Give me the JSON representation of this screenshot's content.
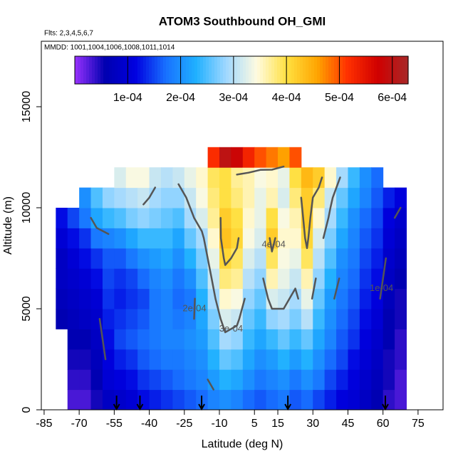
{
  "chart_data": {
    "type": "heatmap",
    "title": "ATOM3 Southbound OH_GMI",
    "subtitle": "Flts: 2,3,4,5,6,7",
    "annotation": "MMDD: 1001,1004,1006,1008,1011,1014",
    "x_label": "Latitude (deg N)",
    "y_label": "Altitude (m)",
    "xlim": [
      -86.2,
      85.7
    ],
    "ylim": [
      0,
      18240
    ],
    "xticks": [
      -85,
      -70,
      -55,
      -40,
      -25,
      -10,
      5,
      15,
      30,
      45,
      60,
      75
    ],
    "yticks": [
      0,
      5000,
      10000,
      15000
    ],
    "zlim": [
      0,
      0.00063
    ],
    "zticks": [
      {
        "value": 0.0001,
        "label": "1e-04"
      },
      {
        "value": 0.0002,
        "label": "2e-04"
      },
      {
        "value": 0.0003,
        "label": "3e-04"
      },
      {
        "value": 0.0004,
        "label": "4e-04"
      },
      {
        "value": 0.0005,
        "label": "5e-04"
      },
      {
        "value": 0.0006,
        "label": "6e-04"
      }
    ],
    "colors": [
      "#9932ff",
      "#0000b0",
      "#0000e0",
      "#1870ff",
      "#20b0ff",
      "#a0d8ff",
      "#fffbe0",
      "#ffe040",
      "#ffa500",
      "#ff3000",
      "#d00000",
      "#a82828"
    ],
    "contour_color": "#555555",
    "contour_levels": [
      {
        "value": 0.0001,
        "label": "1e-04"
      },
      {
        "value": 0.0002,
        "label": "2e-04"
      },
      {
        "value": 0.0003,
        "label": "3e-04"
      },
      {
        "value": 0.0004,
        "label": "4e-04"
      }
    ],
    "flight_markers_x": [
      -54,
      -44,
      -17.6,
      19.3,
      61
    ],
    "x_bins": [
      -80,
      -75,
      -70,
      -65,
      -60,
      -55,
      -50,
      -45,
      -40,
      -35,
      -30,
      -25,
      -20,
      -15,
      -10,
      -5,
      0,
      5,
      10,
      15,
      20,
      25,
      30,
      35,
      40,
      45,
      50,
      55,
      60,
      65,
      70
    ],
    "y_bins": [
      0,
      1000,
      2000,
      3000,
      4000,
      5000,
      6000,
      7000,
      8000,
      9000,
      10000,
      11000,
      12000,
      13000
    ],
    "z": [
      [
        null,
        null,
        null,
        null,
        6e-05,
        7e-05,
        8e-05,
        8e-05,
        0.0001,
        0.00012,
        null,
        null,
        null
      ],
      [
        3e-05,
        4e-05,
        5e-05,
        6e-05,
        7e-05,
        8e-05,
        9e-05,
        0.0001,
        0.00012,
        0.00015,
        null,
        null,
        null
      ],
      [
        3e-05,
        4e-05,
        5e-05,
        6e-05,
        8e-05,
        9e-05,
        0.0001,
        0.00012,
        0.00014,
        0.00018,
        0.0002,
        null,
        null
      ],
      [
        5e-05,
        6e-05,
        7e-05,
        8e-05,
        9e-05,
        0.0001,
        0.00012,
        0.00014,
        0.00018,
        0.00022,
        0.00025,
        null,
        null
      ],
      [
        8e-05,
        0.0001,
        0.00011,
        0.00012,
        0.00013,
        0.00014,
        0.00015,
        0.00016,
        0.00019,
        0.00024,
        0.00028,
        null,
        null
      ],
      [
        9e-05,
        0.00011,
        0.00013,
        0.00015,
        0.00014,
        0.00013,
        0.00014,
        0.00016,
        0.0002,
        0.00025,
        0.00029,
        0.00032,
        null
      ],
      [
        0.0001,
        0.00012,
        0.00014,
        0.00016,
        0.00015,
        0.00014,
        0.00015,
        0.00018,
        0.00022,
        0.00027,
        0.0003,
        0.00034,
        null
      ],
      [
        0.00012,
        0.00014,
        0.00016,
        0.00017,
        0.00016,
        0.00015,
        0.00017,
        0.0002,
        0.00024,
        0.00028,
        0.00031,
        0.00034,
        null
      ],
      [
        0.00013,
        0.00015,
        0.00017,
        0.00018,
        0.00018,
        0.00018,
        0.00019,
        0.00021,
        0.00024,
        0.00027,
        0.00029,
        0.00031,
        null
      ],
      [
        0.00014,
        0.00016,
        0.00018,
        0.00019,
        0.00019,
        0.00019,
        0.0002,
        0.00022,
        0.00024,
        0.00026,
        0.00028,
        0.0003,
        null
      ],
      [
        0.00015,
        0.00017,
        0.00018,
        0.00019,
        0.00018,
        0.00017,
        0.00018,
        0.0002,
        0.00022,
        0.00025,
        0.00028,
        0.00031,
        null
      ],
      [
        0.00016,
        0.00018,
        0.00019,
        0.0002,
        0.00019,
        0.00018,
        0.0002,
        0.00023,
        0.00026,
        0.00029,
        0.00031,
        0.00033,
        null
      ],
      [
        0.00017,
        0.00019,
        0.0002,
        0.00021,
        0.00022,
        0.00023,
        0.00025,
        0.00027,
        0.00029,
        0.00032,
        0.00034,
        0.00035,
        null
      ],
      [
        0.00019,
        0.00021,
        0.00023,
        0.00025,
        0.00027,
        0.00029,
        0.00031,
        0.00033,
        0.00035,
        0.00037,
        0.00038,
        0.00039,
        0.00052
      ],
      [
        0.0002,
        0.00023,
        0.00026,
        0.00029,
        0.00032,
        0.00035,
        0.00038,
        0.00041,
        0.00043,
        0.00042,
        0.0004,
        0.0004,
        0.0006
      ],
      [
        0.00019,
        0.00022,
        0.00025,
        0.00028,
        0.00031,
        0.00034,
        0.00037,
        0.00039,
        0.00041,
        0.0004,
        0.00038,
        0.00037,
        0.00058
      ],
      [
        0.00017,
        0.0002,
        0.00022,
        0.00024,
        0.00026,
        0.00028,
        0.0003,
        0.00032,
        0.00034,
        0.00035,
        0.00036,
        0.00036,
        0.00053
      ],
      [
        0.00016,
        0.00018,
        0.0002,
        0.00022,
        0.00024,
        0.00026,
        0.00028,
        0.0003,
        0.00032,
        0.00033,
        0.00033,
        0.00034,
        0.0005
      ],
      [
        0.00017,
        0.00019,
        0.00021,
        0.00024,
        0.00028,
        0.00032,
        0.00036,
        0.00039,
        0.00042,
        0.0004,
        0.00036,
        0.00035,
        0.00048
      ],
      [
        0.00018,
        0.0002,
        0.00023,
        0.00026,
        0.00029,
        0.00031,
        0.00033,
        0.00034,
        0.00035,
        0.00034,
        0.00032,
        0.00033,
        0.00046
      ],
      [
        0.00016,
        0.00018,
        0.00021,
        0.00024,
        0.00027,
        0.00029,
        0.00031,
        0.00033,
        0.00035,
        0.00036,
        0.00038,
        0.0004,
        0.0005
      ],
      [
        0.00017,
        0.0002,
        0.00023,
        0.00026,
        0.0003,
        0.00033,
        0.00036,
        0.00039,
        0.00041,
        0.00042,
        0.00042,
        0.00044,
        null
      ],
      [
        0.00015,
        0.00018,
        0.0002,
        0.00022,
        0.00024,
        0.00026,
        0.00028,
        0.0003,
        0.00032,
        0.00035,
        0.00038,
        0.00042,
        null
      ],
      [
        0.00013,
        0.00015,
        0.00017,
        0.00019,
        0.0002,
        0.00021,
        0.00023,
        0.00025,
        0.00027,
        0.00029,
        0.00031,
        0.00035,
        null
      ],
      [
        0.00011,
        0.00013,
        0.00015,
        0.00016,
        0.00017,
        0.00018,
        0.00019,
        0.0002,
        0.00022,
        0.00024,
        0.00026,
        0.00029,
        null
      ],
      [
        0.0001,
        0.00011,
        0.00012,
        0.00014,
        0.00015,
        0.00016,
        0.00017,
        0.00018,
        0.00019,
        0.0002,
        0.00022,
        0.00024,
        null
      ],
      [
        8e-05,
        9e-05,
        0.0001,
        0.00011,
        0.00012,
        0.00013,
        0.00014,
        0.00015,
        0.00016,
        0.00017,
        0.00019,
        0.0002,
        null
      ],
      [
        6e-05,
        7e-05,
        8e-05,
        9e-05,
        0.0001,
        0.00011,
        0.00012,
        0.00013,
        0.00014,
        0.00015,
        0.00016,
        0.00017,
        null
      ],
      [
        4e-05,
        5e-05,
        5e-05,
        6e-05,
        6e-05,
        7e-05,
        8e-05,
        9e-05,
        0.0001,
        0.00011,
        0.00013,
        null,
        null
      ],
      [
        3e-05,
        3e-05,
        4e-05,
        4e-05,
        5e-05,
        5e-05,
        6e-05,
        7e-05,
        8e-05,
        9e-05,
        0.00011,
        null,
        null
      ]
    ]
  }
}
